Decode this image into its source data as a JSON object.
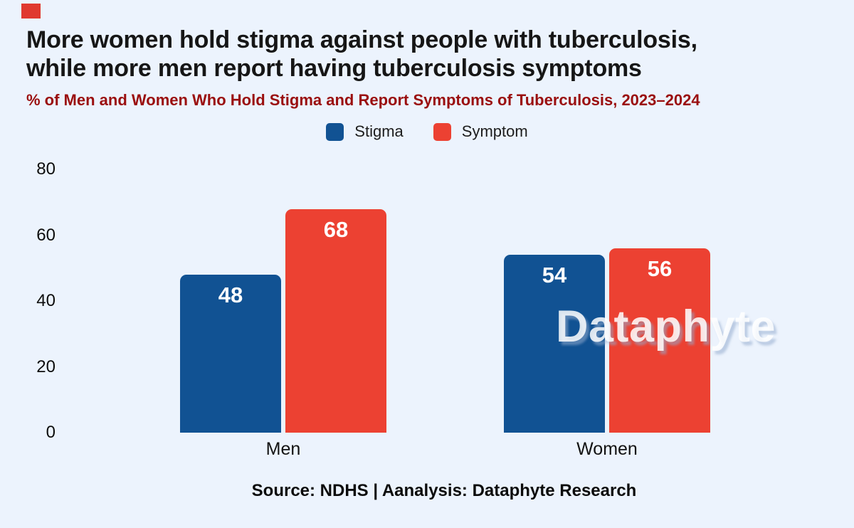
{
  "branding": {
    "watermark": "Dataphyte",
    "corner_square_color": "#e03a2f"
  },
  "header": {
    "title_lines": [
      "More women hold stigma against people with tuberculosis,",
      "while more men report having tuberculosis symptoms"
    ],
    "subtitle": "% of Men and Women Who Hold Stigma and Report Symptoms of Tuberculosis, 2023–2024",
    "subtitle_color": "#9a0e0e"
  },
  "legend": [
    {
      "label": "Stigma",
      "color": "#115293"
    },
    {
      "label": "Symptom",
      "color": "#ec4132"
    }
  ],
  "chart_data": {
    "type": "bar",
    "title": "More women hold stigma against people with tuberculosis, while more men report having tuberculosis symptoms",
    "subtitle": "% of Men and Women Who Hold Stigma and Report Symptoms of Tuberculosis, 2023–2024",
    "categories": [
      "Men",
      "Women"
    ],
    "series": [
      {
        "name": "Stigma",
        "color": "#115293",
        "values": [
          48,
          54
        ]
      },
      {
        "name": "Symptom",
        "color": "#ec4132",
        "values": [
          68,
          56
        ]
      }
    ],
    "ylim": [
      0,
      80
    ],
    "yticks": [
      0,
      20,
      40,
      60,
      80
    ],
    "grid": false,
    "legend_position": "top-center",
    "value_labels": true,
    "xlabel": "",
    "ylabel": ""
  },
  "footer": {
    "source": "Source: NDHS | Aanalysis: Dataphyte Research"
  }
}
